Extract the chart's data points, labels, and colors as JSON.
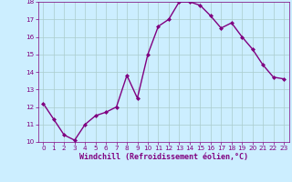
{
  "x": [
    0,
    1,
    2,
    3,
    4,
    5,
    6,
    7,
    8,
    9,
    10,
    11,
    12,
    13,
    14,
    15,
    16,
    17,
    18,
    19,
    20,
    21,
    22,
    23
  ],
  "y": [
    12.2,
    11.3,
    10.4,
    10.1,
    11.0,
    11.5,
    11.7,
    12.0,
    13.8,
    12.5,
    15.0,
    16.6,
    17.0,
    18.0,
    18.0,
    17.8,
    17.2,
    16.5,
    16.8,
    16.0,
    15.3,
    14.4,
    13.7,
    13.6
  ],
  "line_color": "#800080",
  "marker": "D",
  "marker_size": 2.0,
  "background_color": "#cceeff",
  "grid_color": "#aacccc",
  "xlabel": "Windchill (Refroidissement éolien,°C)",
  "ylim": [
    10,
    18
  ],
  "xlim": [
    -0.5,
    23.5
  ],
  "yticks": [
    10,
    11,
    12,
    13,
    14,
    15,
    16,
    17,
    18
  ],
  "xticks": [
    0,
    1,
    2,
    3,
    4,
    5,
    6,
    7,
    8,
    9,
    10,
    11,
    12,
    13,
    14,
    15,
    16,
    17,
    18,
    19,
    20,
    21,
    22,
    23
  ],
  "tick_color": "#800080",
  "tick_fontsize": 5.2,
  "xlabel_fontsize": 6.0,
  "line_width": 1.0
}
